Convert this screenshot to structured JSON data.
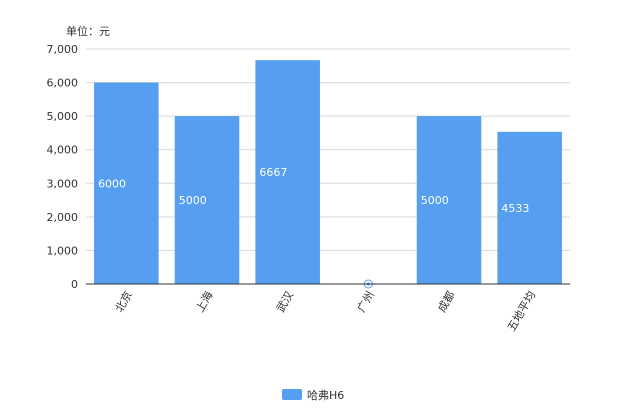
{
  "chart_data": {
    "type": "bar",
    "unit_label": "单位：元",
    "categories": [
      "北京",
      "上海",
      "武汉",
      "广州",
      "成都",
      "五地平均"
    ],
    "series": [
      {
        "name": "哈弗H6",
        "color": "#559ef0",
        "values": [
          6000,
          5000,
          6667,
          0,
          5000,
          4533
        ],
        "data_labels": [
          "6000",
          "5000",
          "6667",
          "",
          "5000",
          "4533"
        ]
      }
    ],
    "ylim": [
      0,
      7000
    ],
    "y_ticks": [
      "0",
      "1,000",
      "2,000",
      "3,000",
      "4,000",
      "5,000",
      "6,000",
      "7,000"
    ],
    "y_tick_values": [
      0,
      1000,
      2000,
      3000,
      4000,
      5000,
      6000,
      7000
    ],
    "grid": true,
    "legend_position": "bottom-center",
    "zero_marker": {
      "category": "广州",
      "icon": "target-marker-icon"
    }
  }
}
